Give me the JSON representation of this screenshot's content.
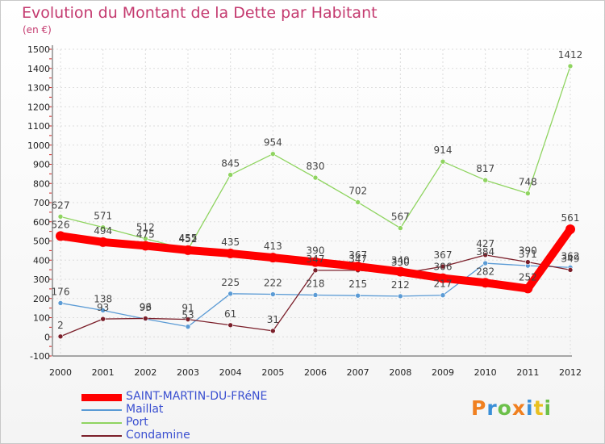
{
  "title": "Evolution du Montant de la Dette par Habitant",
  "unit_label": "(en €)",
  "logo": {
    "text": "Proxiti",
    "colors": [
      "#f08020",
      "#3a8fd8",
      "#6cc04a",
      "#f08020",
      "#3a8fd8",
      "#e8c020",
      "#6cc04a"
    ]
  },
  "chart_data": {
    "type": "line",
    "title": "Evolution du Montant de la Dette par Habitant",
    "ylabel": "(en €)",
    "x": [
      "2000",
      "2001",
      "2002",
      "2003",
      "2004",
      "2005",
      "2006",
      "2007",
      "2008",
      "2009",
      "2010",
      "2011",
      "2012"
    ],
    "ylim": [
      -100,
      1500
    ],
    "yticks": [
      -100,
      0,
      100,
      200,
      300,
      400,
      500,
      600,
      700,
      800,
      900,
      1000,
      1100,
      1200,
      1300,
      1400,
      1500
    ],
    "grid": true,
    "legend": "bottom-left",
    "series": [
      {
        "name": "SAINT-MARTIN-DU-FRéNE",
        "color": "#ff0000",
        "values": [
          526,
          494,
          475,
          452,
          435,
          413,
          390,
          367,
          340,
          306,
          282,
          252,
          561
        ]
      },
      {
        "name": "Maillat",
        "color": "#5b9bd5",
        "values": [
          176,
          138,
          93,
          53,
          225,
          222,
          218,
          215,
          212,
          217,
          384,
          371,
          362
        ]
      },
      {
        "name": "Port",
        "color": "#8fd460",
        "values": [
          627,
          571,
          512,
          455,
          845,
          954,
          830,
          702,
          567,
          914,
          817,
          748,
          1412
        ]
      },
      {
        "name": "Condamine",
        "color": "#7b1f2a",
        "values": [
          2,
          93,
          96,
          91,
          61,
          31,
          347,
          347,
          330,
          367,
          427,
          390,
          349
        ]
      }
    ]
  }
}
